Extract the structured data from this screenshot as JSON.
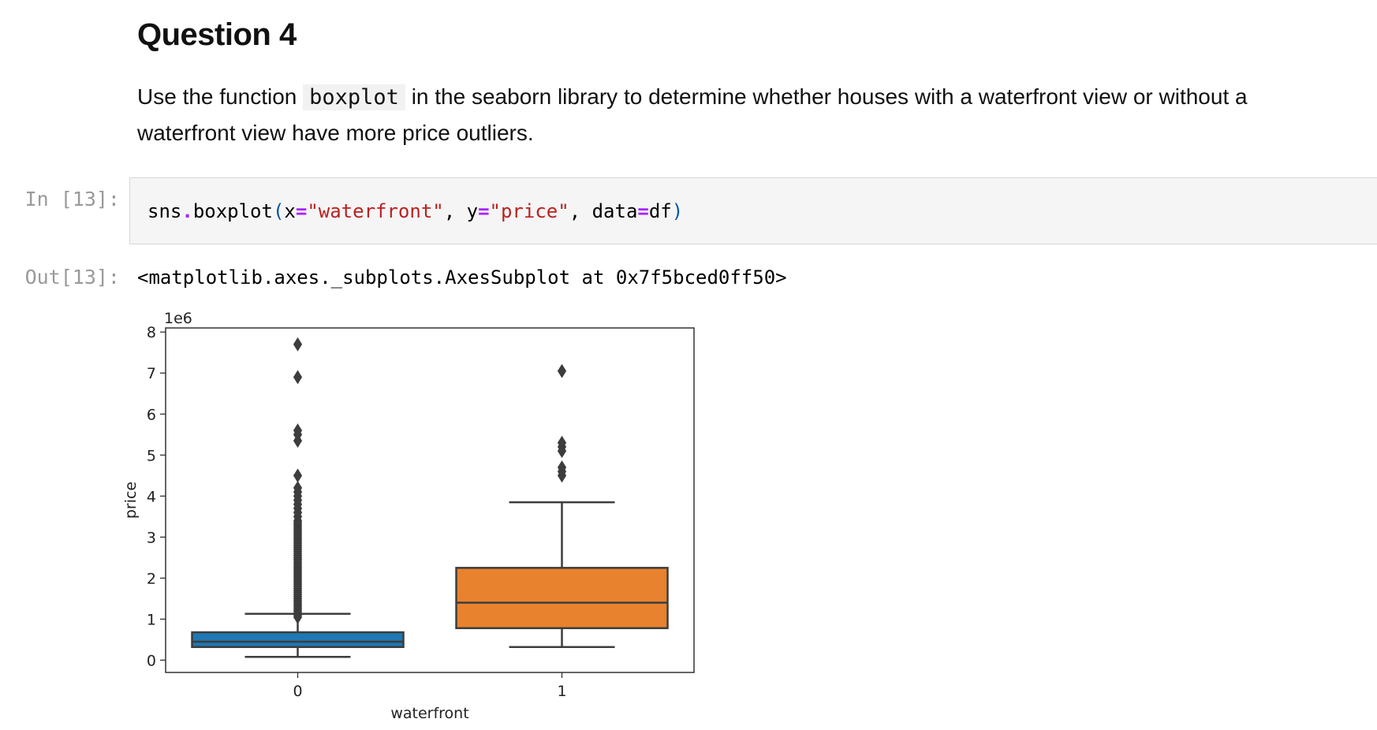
{
  "heading": "Question 4",
  "instructions": {
    "before": "Use the function ",
    "code": "boxplot",
    "after": " in the seaborn library to determine whether houses with a waterfront view or without a waterfront view have more price outliers."
  },
  "cell_in": {
    "prompt": "In [13]:",
    "code": {
      "t1": "sns",
      "dot": ".",
      "t2": "boxplot",
      "lp": "(",
      "arg1": "x",
      "eq1": "=",
      "val1": "\"waterfront\"",
      "sep1": ", ",
      "arg2": "y",
      "eq2": "=",
      "val2": "\"price\"",
      "sep2": ", ",
      "arg3": "data",
      "eq3": "=",
      "val3": "df",
      "rp": ")"
    }
  },
  "cell_out": {
    "prompt": "Out[13]:",
    "text": "<matplotlib.axes._subplots.AxesSubplot at 0x7f5bced0ff50>"
  },
  "chart_data": {
    "type": "box",
    "xlabel": "waterfront",
    "ylabel": "price",
    "offset_text": "1e6",
    "ylim": [
      -0.3,
      8.1
    ],
    "yticks": [
      0,
      1,
      2,
      3,
      4,
      5,
      6,
      7,
      8
    ],
    "categories": [
      "0",
      "1"
    ],
    "boxes": [
      {
        "category": "0",
        "color": "#1f77b4",
        "whisker_low": 0.08,
        "q1": 0.32,
        "median": 0.45,
        "q3": 0.68,
        "whisker_high": 1.13,
        "outliers": [
          1.05,
          1.1,
          1.15,
          1.2,
          1.25,
          1.3,
          1.35,
          1.4,
          1.45,
          1.5,
          1.55,
          1.6,
          1.65,
          1.7,
          1.75,
          1.8,
          1.85,
          1.9,
          1.95,
          2.0,
          2.05,
          2.1,
          2.15,
          2.2,
          2.25,
          2.3,
          2.35,
          2.4,
          2.45,
          2.5,
          2.55,
          2.6,
          2.65,
          2.7,
          2.75,
          2.8,
          2.85,
          2.9,
          2.95,
          3.0,
          3.05,
          3.1,
          3.15,
          3.2,
          3.25,
          3.3,
          3.35,
          3.4,
          3.5,
          3.6,
          3.7,
          3.8,
          3.9,
          4.0,
          4.1,
          4.2,
          4.5,
          5.35,
          5.5,
          5.6,
          6.9,
          7.7
        ]
      },
      {
        "category": "1",
        "color": "#e8822e",
        "whisker_low": 0.32,
        "q1": 0.78,
        "median": 1.4,
        "q3": 2.25,
        "whisker_high": 3.85,
        "outliers": [
          4.5,
          4.6,
          4.7,
          5.1,
          5.2,
          5.3,
          7.05
        ]
      }
    ]
  }
}
